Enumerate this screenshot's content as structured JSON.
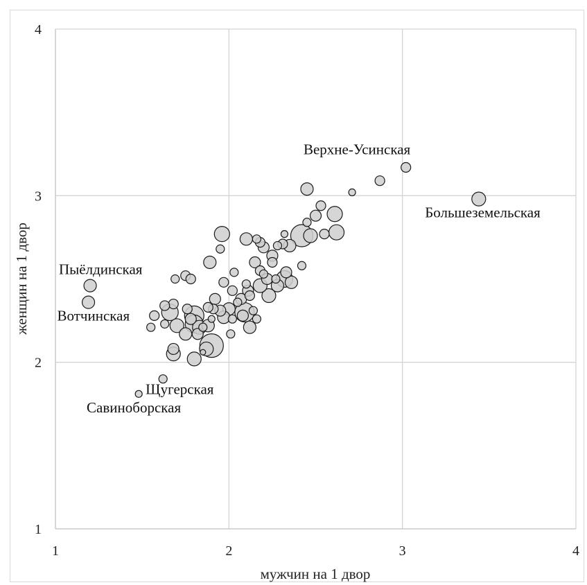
{
  "chart_data": {
    "type": "scatter",
    "title": "",
    "xlabel": "мужчин на 1 двор",
    "ylabel": "женщин на 1 двор",
    "xlim": [
      1,
      4
    ],
    "ylim": [
      1,
      4
    ],
    "x_ticks": [
      "1",
      "2",
      "3",
      "4"
    ],
    "y_ticks": [
      "1",
      "2",
      "3",
      "4"
    ],
    "grid": true,
    "legend": "none",
    "colors": {
      "bubble_fill": "#cfcfcf",
      "bubble_stroke": "#1a1a1a",
      "grid": "#d4d4d4",
      "axis": "#bfbfbf"
    },
    "annotations": [
      {
        "text": "Верхне-Усинская",
        "x": 2.43,
        "y": 3.25
      },
      {
        "text": "Большеземельская",
        "x": 3.13,
        "y": 2.87
      },
      {
        "text": "Пыёлдинская",
        "x": 1.02,
        "y": 2.53
      },
      {
        "text": "Вотчинская",
        "x": 1.01,
        "y": 2.25
      },
      {
        "text": "Щугерская",
        "x": 1.52,
        "y": 1.81
      },
      {
        "text": "Савиноборская",
        "x": 1.18,
        "y": 1.7
      }
    ],
    "points": [
      {
        "x": 1.2,
        "y": 2.46,
        "r": 9
      },
      {
        "x": 1.19,
        "y": 2.36,
        "r": 9
      },
      {
        "x": 3.02,
        "y": 3.17,
        "r": 7
      },
      {
        "x": 2.87,
        "y": 3.09,
        "r": 7
      },
      {
        "x": 2.71,
        "y": 3.02,
        "r": 5
      },
      {
        "x": 3.44,
        "y": 2.98,
        "r": 10
      },
      {
        "x": 2.45,
        "y": 3.04,
        "r": 9
      },
      {
        "x": 2.53,
        "y": 2.94,
        "r": 7
      },
      {
        "x": 2.5,
        "y": 2.88,
        "r": 8
      },
      {
        "x": 2.61,
        "y": 2.89,
        "r": 11
      },
      {
        "x": 2.62,
        "y": 2.78,
        "r": 11
      },
      {
        "x": 2.55,
        "y": 2.77,
        "r": 7
      },
      {
        "x": 2.45,
        "y": 2.84,
        "r": 6
      },
      {
        "x": 2.42,
        "y": 2.76,
        "r": 16
      },
      {
        "x": 2.47,
        "y": 2.76,
        "r": 10
      },
      {
        "x": 2.35,
        "y": 2.7,
        "r": 9
      },
      {
        "x": 2.31,
        "y": 2.71,
        "r": 7
      },
      {
        "x": 2.32,
        "y": 2.77,
        "r": 5
      },
      {
        "x": 2.28,
        "y": 2.7,
        "r": 6
      },
      {
        "x": 2.25,
        "y": 2.64,
        "r": 8
      },
      {
        "x": 2.25,
        "y": 2.6,
        "r": 7
      },
      {
        "x": 2.42,
        "y": 2.58,
        "r": 6
      },
      {
        "x": 2.32,
        "y": 2.5,
        "r": 12
      },
      {
        "x": 2.33,
        "y": 2.54,
        "r": 8
      },
      {
        "x": 2.36,
        "y": 2.48,
        "r": 9
      },
      {
        "x": 2.28,
        "y": 2.46,
        "r": 9
      },
      {
        "x": 2.27,
        "y": 2.5,
        "r": 6
      },
      {
        "x": 2.22,
        "y": 2.5,
        "r": 8
      },
      {
        "x": 2.23,
        "y": 2.4,
        "r": 10
      },
      {
        "x": 2.18,
        "y": 2.46,
        "r": 10
      },
      {
        "x": 2.18,
        "y": 2.55,
        "r": 7
      },
      {
        "x": 2.15,
        "y": 2.6,
        "r": 8
      },
      {
        "x": 2.2,
        "y": 2.69,
        "r": 8
      },
      {
        "x": 2.18,
        "y": 2.72,
        "r": 7
      },
      {
        "x": 2.16,
        "y": 2.74,
        "r": 6
      },
      {
        "x": 2.1,
        "y": 2.74,
        "r": 9
      },
      {
        "x": 2.2,
        "y": 2.53,
        "r": 6
      },
      {
        "x": 1.96,
        "y": 2.77,
        "r": 11
      },
      {
        "x": 1.95,
        "y": 2.68,
        "r": 6
      },
      {
        "x": 1.89,
        "y": 2.6,
        "r": 9
      },
      {
        "x": 2.03,
        "y": 2.54,
        "r": 6
      },
      {
        "x": 1.97,
        "y": 2.48,
        "r": 7
      },
      {
        "x": 2.02,
        "y": 2.43,
        "r": 7
      },
      {
        "x": 2.1,
        "y": 2.47,
        "r": 6
      },
      {
        "x": 2.11,
        "y": 2.43,
        "r": 8
      },
      {
        "x": 2.07,
        "y": 2.38,
        "r": 8
      },
      {
        "x": 2.12,
        "y": 2.4,
        "r": 7
      },
      {
        "x": 2.05,
        "y": 2.36,
        "r": 6
      },
      {
        "x": 2.0,
        "y": 2.32,
        "r": 9
      },
      {
        "x": 1.97,
        "y": 2.27,
        "r": 9
      },
      {
        "x": 2.02,
        "y": 2.26,
        "r": 6
      },
      {
        "x": 1.95,
        "y": 2.31,
        "r": 8
      },
      {
        "x": 1.92,
        "y": 2.38,
        "r": 8
      },
      {
        "x": 1.91,
        "y": 2.32,
        "r": 7
      },
      {
        "x": 1.88,
        "y": 2.33,
        "r": 7
      },
      {
        "x": 2.09,
        "y": 2.3,
        "r": 14
      },
      {
        "x": 2.08,
        "y": 2.28,
        "r": 8
      },
      {
        "x": 2.14,
        "y": 2.31,
        "r": 6
      },
      {
        "x": 2.16,
        "y": 2.26,
        "r": 6
      },
      {
        "x": 2.12,
        "y": 2.21,
        "r": 9
      },
      {
        "x": 2.01,
        "y": 2.17,
        "r": 6
      },
      {
        "x": 1.9,
        "y": 2.26,
        "r": 5
      },
      {
        "x": 1.85,
        "y": 2.21,
        "r": 6
      },
      {
        "x": 1.83,
        "y": 2.21,
        "r": 10
      },
      {
        "x": 1.88,
        "y": 2.22,
        "r": 9
      },
      {
        "x": 1.8,
        "y": 2.28,
        "r": 14
      },
      {
        "x": 1.8,
        "y": 2.23,
        "r": 13
      },
      {
        "x": 1.82,
        "y": 2.17,
        "r": 8
      },
      {
        "x": 1.9,
        "y": 2.1,
        "r": 17
      },
      {
        "x": 1.87,
        "y": 2.08,
        "r": 10
      },
      {
        "x": 1.85,
        "y": 2.06,
        "r": 4
      },
      {
        "x": 1.8,
        "y": 2.02,
        "r": 10
      },
      {
        "x": 1.75,
        "y": 2.17,
        "r": 9
      },
      {
        "x": 1.76,
        "y": 2.32,
        "r": 7
      },
      {
        "x": 1.78,
        "y": 2.26,
        "r": 8
      },
      {
        "x": 1.7,
        "y": 2.22,
        "r": 10
      },
      {
        "x": 1.68,
        "y": 2.35,
        "r": 7
      },
      {
        "x": 1.66,
        "y": 2.3,
        "r": 12
      },
      {
        "x": 1.63,
        "y": 2.34,
        "r": 7
      },
      {
        "x": 1.63,
        "y": 2.23,
        "r": 6
      },
      {
        "x": 1.57,
        "y": 2.28,
        "r": 7
      },
      {
        "x": 1.55,
        "y": 2.21,
        "r": 6
      },
      {
        "x": 1.68,
        "y": 2.08,
        "r": 8
      },
      {
        "x": 1.68,
        "y": 2.05,
        "r": 10
      },
      {
        "x": 1.69,
        "y": 2.5,
        "r": 6
      },
      {
        "x": 1.75,
        "y": 2.52,
        "r": 7
      },
      {
        "x": 1.78,
        "y": 2.5,
        "r": 7
      },
      {
        "x": 1.62,
        "y": 1.9,
        "r": 6
      },
      {
        "x": 1.48,
        "y": 1.81,
        "r": 5
      }
    ]
  }
}
